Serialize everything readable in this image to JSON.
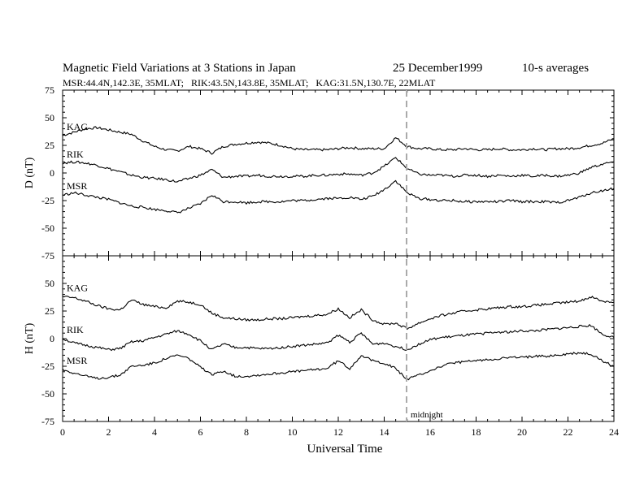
{
  "header": {
    "title": "Magnetic Field Variations at 3 Stations in Japan",
    "date": "25 December1999",
    "averaging": "10-s averages",
    "stations_line": "MSR:44.4N,142.3E, 35MLAT;   RIK:43.5N,143.8E, 35MLAT;   KAG:31.5N,130.7E, 22MLAT"
  },
  "chart_data": [
    {
      "type": "line",
      "ylabel": "D (nT)",
      "xlabel": "",
      "xlim": [
        0,
        24
      ],
      "ylim": [
        -75,
        75
      ],
      "yticks": [
        -75,
        -50,
        -25,
        0,
        25,
        50,
        75
      ],
      "series": [
        {
          "name": "KAG",
          "x": [
            0,
            0.5,
            1,
            1.5,
            2,
            2.5,
            3,
            3.5,
            4,
            4.5,
            5,
            5.5,
            6,
            6.5,
            7,
            7.5,
            8,
            8.5,
            9,
            9.5,
            10,
            10.5,
            11,
            11.5,
            12,
            12.5,
            13,
            13.5,
            14,
            14.5,
            15,
            15.5,
            16,
            16.5,
            17,
            17.5,
            18,
            18.5,
            19,
            19.5,
            20,
            20.5,
            21,
            21.5,
            22,
            22.5,
            23,
            23.5,
            24
          ],
          "y": [
            34,
            37,
            40,
            41,
            39,
            37,
            35,
            29,
            24,
            21,
            20,
            24,
            22,
            18,
            24,
            26,
            27,
            28,
            27,
            25,
            22,
            21,
            21,
            21,
            22,
            23,
            22,
            22,
            22,
            32,
            24,
            22,
            22,
            21,
            21,
            22,
            21,
            21,
            22,
            21,
            21,
            22,
            21,
            22,
            22,
            23,
            25,
            27,
            31
          ]
        },
        {
          "name": "RIK",
          "x": [
            0,
            0.5,
            1,
            1.5,
            2,
            2.5,
            3,
            3.5,
            4,
            4.5,
            5,
            5.5,
            6,
            6.5,
            7,
            7.5,
            8,
            8.5,
            9,
            9.5,
            10,
            10.5,
            11,
            11.5,
            12,
            12.5,
            13,
            13.5,
            14,
            14.5,
            15,
            15.5,
            16,
            16.5,
            17,
            17.5,
            18,
            18.5,
            19,
            19.5,
            20,
            20.5,
            21,
            21.5,
            22,
            22.5,
            23,
            23.5,
            24
          ],
          "y": [
            9,
            10,
            9,
            7,
            4,
            1,
            -2,
            -4,
            -5,
            -6,
            -8,
            -5,
            -2,
            3,
            -4,
            -3,
            -3,
            -2,
            -3,
            -3,
            -3,
            -3,
            -2,
            -2,
            -1,
            -1,
            -2,
            0,
            6,
            14,
            4,
            -1,
            -2,
            -2,
            -3,
            -2,
            -2,
            -3,
            -2,
            -3,
            -2,
            -3,
            -2,
            -3,
            -2,
            0,
            5,
            8,
            10
          ]
        },
        {
          "name": "MSR",
          "x": [
            0,
            0.5,
            1,
            1.5,
            2,
            2.5,
            3,
            3.5,
            4,
            4.5,
            5,
            5.5,
            6,
            6.5,
            7,
            7.5,
            8,
            8.5,
            9,
            9.5,
            10,
            10.5,
            11,
            11.5,
            12,
            12.5,
            13,
            13.5,
            14,
            14.5,
            15,
            15.5,
            16,
            16.5,
            17,
            17.5,
            18,
            18.5,
            19,
            19.5,
            20,
            20.5,
            21,
            21.5,
            22,
            22.5,
            23,
            23.5,
            24
          ],
          "y": [
            -20,
            -18,
            -20,
            -22,
            -24,
            -27,
            -30,
            -31,
            -33,
            -34,
            -36,
            -32,
            -28,
            -20,
            -26,
            -26,
            -27,
            -26,
            -26,
            -26,
            -25,
            -25,
            -24,
            -23,
            -23,
            -22,
            -24,
            -21,
            -15,
            -7,
            -18,
            -23,
            -24,
            -25,
            -25,
            -26,
            -26,
            -26,
            -26,
            -25,
            -26,
            -26,
            -26,
            -27,
            -25,
            -22,
            -18,
            -16,
            -14
          ]
        }
      ]
    },
    {
      "type": "line",
      "ylabel": "H (nT)",
      "xlabel": "Universal Time",
      "xlim": [
        0,
        24
      ],
      "ylim": [
        -75,
        75
      ],
      "xticks": [
        0,
        2,
        4,
        6,
        8,
        10,
        12,
        14,
        16,
        18,
        20,
        22,
        24
      ],
      "yticks": [
        -75,
        -50,
        -25,
        0,
        25,
        50,
        75
      ],
      "annotation": {
        "text": "midnight",
        "x": 15
      },
      "series": [
        {
          "name": "KAG",
          "x": [
            0,
            0.5,
            1,
            1.5,
            2,
            2.5,
            3,
            3.5,
            4,
            4.5,
            5,
            5.5,
            6,
            6.5,
            7,
            7.5,
            8,
            8.5,
            9,
            9.5,
            10,
            10.5,
            11,
            11.5,
            12,
            12.5,
            13,
            13.5,
            14,
            14.5,
            15,
            15.5,
            16,
            16.5,
            17,
            17.5,
            18,
            18.5,
            19,
            19.5,
            20,
            20.5,
            21,
            21.5,
            22,
            22.5,
            23,
            23.5,
            24
          ],
          "y": [
            38,
            37,
            34,
            30,
            27,
            26,
            35,
            31,
            29,
            28,
            34,
            33,
            31,
            23,
            19,
            18,
            17,
            17,
            18,
            18,
            19,
            20,
            21,
            22,
            27,
            19,
            26,
            17,
            13,
            14,
            9,
            14,
            18,
            21,
            23,
            25,
            26,
            27,
            28,
            29,
            29,
            30,
            31,
            32,
            33,
            34,
            38,
            34,
            33
          ]
        },
        {
          "name": "RIK",
          "x": [
            0,
            0.5,
            1,
            1.5,
            2,
            2.5,
            3,
            3.5,
            4,
            4.5,
            5,
            5.5,
            6,
            6.5,
            7,
            7.5,
            8,
            8.5,
            9,
            9.5,
            10,
            10.5,
            11,
            11.5,
            12,
            12.5,
            13,
            13.5,
            14,
            14.5,
            15,
            15.5,
            16,
            16.5,
            17,
            17.5,
            18,
            18.5,
            19,
            19.5,
            20,
            20.5,
            21,
            21.5,
            22,
            22.5,
            23,
            23.5,
            24
          ],
          "y": [
            0,
            -4,
            -6,
            -8,
            -10,
            -9,
            -3,
            -2,
            1,
            4,
            7,
            4,
            -2,
            -10,
            -5,
            -8,
            -8,
            -9,
            -9,
            -8,
            -7,
            -6,
            -5,
            -4,
            3,
            -3,
            5,
            -5,
            -4,
            -7,
            -10,
            -5,
            -1,
            1,
            2,
            3,
            4,
            5,
            6,
            6,
            7,
            7,
            8,
            9,
            10,
            11,
            12,
            4,
            1
          ]
        },
        {
          "name": "MSR",
          "x": [
            0,
            0.5,
            1,
            1.5,
            2,
            2.5,
            3,
            3.5,
            4,
            4.5,
            5,
            5.5,
            6,
            6.5,
            7,
            7.5,
            8,
            8.5,
            9,
            9.5,
            10,
            10.5,
            11,
            11.5,
            12,
            12.5,
            13,
            13.5,
            14,
            14.5,
            15,
            15.5,
            16,
            16.5,
            17,
            17.5,
            18,
            18.5,
            19,
            19.5,
            20,
            20.5,
            21,
            21.5,
            22,
            22.5,
            23,
            23.5,
            24
          ],
          "y": [
            -28,
            -31,
            -34,
            -36,
            -35,
            -33,
            -25,
            -24,
            -22,
            -18,
            -15,
            -18,
            -26,
            -33,
            -29,
            -34,
            -34,
            -33,
            -32,
            -31,
            -30,
            -29,
            -28,
            -27,
            -20,
            -27,
            -15,
            -20,
            -22,
            -27,
            -37,
            -33,
            -29,
            -25,
            -22,
            -21,
            -20,
            -19,
            -18,
            -17,
            -17,
            -16,
            -16,
            -15,
            -14,
            -13,
            -14,
            -20,
            -25
          ]
        }
      ]
    }
  ]
}
